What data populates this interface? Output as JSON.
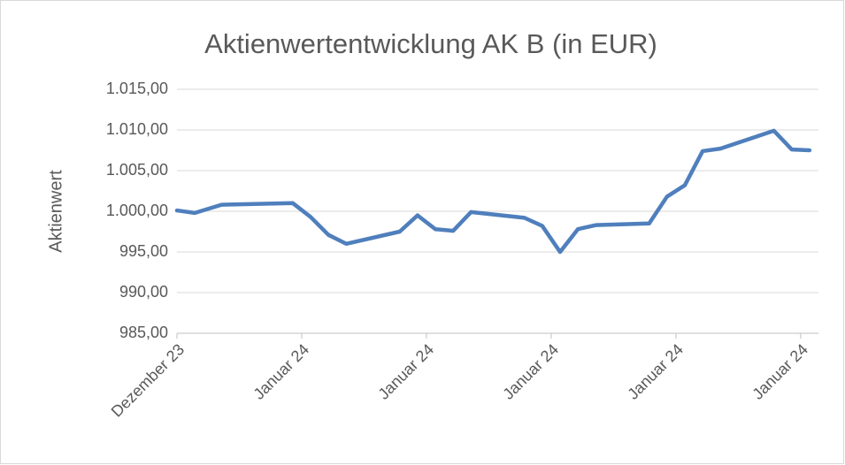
{
  "chart_data": {
    "type": "line",
    "title": "Aktienwertentwicklung AK B (in EUR)",
    "ylabel": "Aktienwert",
    "x": [
      0,
      1,
      2.5,
      6.5,
      7.5,
      8.5,
      9.5,
      12.5,
      13.5,
      14.5,
      15.5,
      16.5,
      19.5,
      20.5,
      21.5,
      22.5,
      23.5,
      26.5,
      27.5,
      28.5,
      29.5,
      30.5,
      33.5,
      34.5,
      35.5
    ],
    "series": [
      {
        "name": "Aktienwert",
        "color": "#4f7fbc",
        "values": [
          1000.1,
          999.8,
          1000.8,
          1001.0,
          999.3,
          997.1,
          996.0,
          997.5,
          999.5,
          997.8,
          997.6,
          999.9,
          999.2,
          998.2,
          995.0,
          997.8,
          998.3,
          998.5,
          1001.8,
          1003.2,
          1007.4,
          1007.7,
          1009.9,
          1007.6,
          1007.5
        ]
      }
    ],
    "xlim": [
      0,
      36
    ],
    "xticks": [
      {
        "value": 0,
        "label": "Dezember 23"
      },
      {
        "value": 7,
        "label": "Januar 24"
      },
      {
        "value": 14,
        "label": "Januar 24"
      },
      {
        "value": 21,
        "label": "Januar 24"
      },
      {
        "value": 28,
        "label": "Januar 24"
      },
      {
        "value": 35,
        "label": "Januar 24"
      }
    ],
    "ylim": [
      985,
      1015
    ],
    "yticks": [
      {
        "value": 985,
        "label": "985,00"
      },
      {
        "value": 990,
        "label": "990,00"
      },
      {
        "value": 995,
        "label": "995,00"
      },
      {
        "value": 1000,
        "label": "1.000,00"
      },
      {
        "value": 1005,
        "label": "1.005,00"
      },
      {
        "value": 1010,
        "label": "1.010,00"
      },
      {
        "value": 1015,
        "label": "1.015,00"
      }
    ],
    "grid": true
  }
}
